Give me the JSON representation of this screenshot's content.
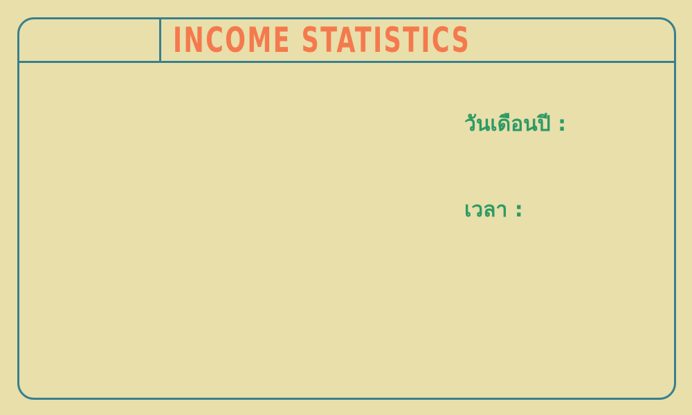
{
  "header": {
    "title": "INCOME STATISTICS"
  },
  "fields": {
    "date_label": "วันเดือนปี :",
    "time_label": "เวลา :"
  },
  "colors": {
    "background": "#e8dfab",
    "border": "#3a7f8c",
    "title": "#f47a4e",
    "label": "#2e9a64"
  }
}
